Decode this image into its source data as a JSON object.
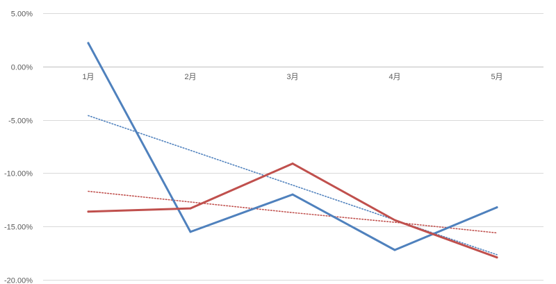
{
  "chart_data": {
    "type": "line",
    "title": "",
    "categories": [
      "1月",
      "2月",
      "3月",
      "4月",
      "5月"
    ],
    "ylim": [
      -0.2,
      0.05
    ],
    "yticks": [
      "5.00%",
      "0.00%",
      "-5.00%",
      "-10.00%",
      "-15.00%",
      "-20.00%"
    ],
    "ytick_values": [
      0.05,
      0.0,
      -0.05,
      -0.1,
      -0.15,
      -0.2
    ],
    "grid": true,
    "legend": "none",
    "series": [
      {
        "color": "#4f81bd",
        "values": [
          0.022,
          -0.155,
          -0.12,
          -0.172,
          -0.132
        ]
      },
      {
        "color": "#c0504d",
        "values": [
          -0.136,
          -0.133,
          -0.091,
          -0.144,
          -0.179
        ]
      }
    ],
    "trendlines": [
      {
        "color": "#4f81bd",
        "style": "dotted",
        "values": [
          -0.046,
          -0.0786,
          -0.1112,
          -0.1438,
          -0.1764
        ]
      },
      {
        "color": "#c0504d",
        "style": "dotted",
        "values": [
          -0.117,
          -0.127,
          -0.137,
          -0.146,
          -0.156
        ]
      }
    ]
  }
}
